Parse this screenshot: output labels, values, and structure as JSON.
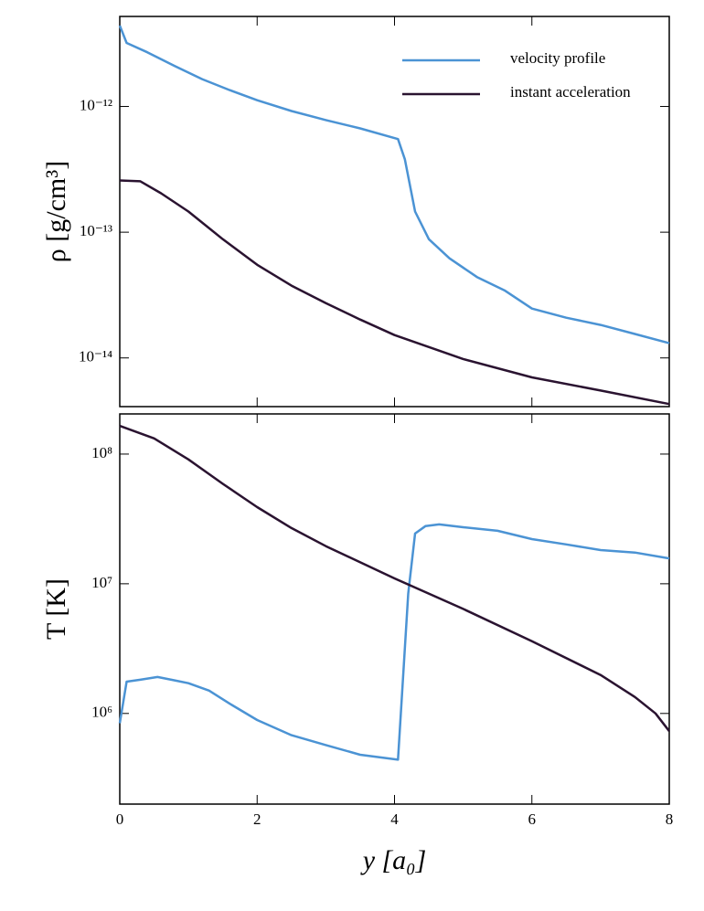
{
  "chart_data": [
    {
      "type": "line",
      "ylabel": "ρ [g/cm³]",
      "yscale": "log",
      "xlim": [
        0,
        8
      ],
      "ylim": [
        4.1e-15,
        5.2e-12
      ],
      "yticks": [
        {
          "value": 1e-14,
          "label": "10⁻¹⁴"
        },
        {
          "value": 1e-13,
          "label": "10⁻¹³"
        },
        {
          "value": 1e-12,
          "label": "10⁻¹²"
        }
      ],
      "legend": "upper right",
      "series": [
        {
          "name": "velocity profile",
          "color": "#4b93d4",
          "x": [
            0,
            0.1,
            0.4,
            0.8,
            1.2,
            1.6,
            2,
            2.5,
            3,
            3.5,
            4.05,
            4.15,
            4.3,
            4.5,
            4.8,
            5.2,
            5.6,
            6,
            6.5,
            7,
            7.5,
            8
          ],
          "values": [
            4.4e-12,
            3.2e-12,
            2.7e-12,
            2.1e-12,
            1.65e-12,
            1.35e-12,
            1.12e-12,
            9.2e-13,
            7.8e-13,
            6.7e-13,
            5.5e-13,
            3.8e-13,
            1.46e-13,
            8.8e-14,
            6.2e-14,
            4.4e-14,
            3.45e-14,
            2.47e-14,
            2.09e-14,
            1.83e-14,
            1.55e-14,
            1.31e-14
          ]
        },
        {
          "name": "instant acceleration",
          "color": "#2a1330",
          "x": [
            0,
            0.3,
            0.6,
            1,
            1.5,
            2,
            2.5,
            3,
            3.5,
            4,
            5,
            6,
            7,
            8
          ],
          "values": [
            2.58e-13,
            2.54e-13,
            2.04e-13,
            1.46e-13,
            8.8e-14,
            5.5e-14,
            3.76e-14,
            2.73e-14,
            2.02e-14,
            1.52e-14,
            9.8e-15,
            7e-15,
            5.5e-15,
            4.3e-15
          ]
        }
      ]
    },
    {
      "type": "line",
      "ylabel": "T [K]",
      "xlabel": "y [a₀]",
      "yscale": "log",
      "xlim": [
        0,
        8
      ],
      "ylim": [
        200000.0,
        204000000.0
      ],
      "xticks": [
        0,
        2,
        4,
        6,
        8
      ],
      "yticks": [
        {
          "value": 1000000.0,
          "label": "10⁶"
        },
        {
          "value": 10000000.0,
          "label": "10⁷"
        },
        {
          "value": 100000000.0,
          "label": "10⁸"
        }
      ],
      "series": [
        {
          "color": "#4b93d4",
          "x": [
            0,
            0.1,
            0.3,
            0.55,
            0.8,
            1,
            1.3,
            1.6,
            2,
            2.5,
            3,
            3.5,
            4.05,
            4.2,
            4.3,
            4.45,
            4.65,
            5,
            5.5,
            6,
            6.5,
            7,
            7.5,
            8
          ],
          "values": [
            840000.0,
            1760000.0,
            1820000.0,
            1910000.0,
            1800000.0,
            1710000.0,
            1500000.0,
            1190000.0,
            890000.0,
            680000.0,
            570000.0,
            480000.0,
            440000.0,
            8400000.0,
            24400000.0,
            27800000.0,
            28700000.0,
            27300000.0,
            25600000.0,
            22100000.0,
            20100000.0,
            18200000.0,
            17400000.0,
            15700000.0
          ]
        },
        {
          "color": "#2a1330",
          "x": [
            0,
            0.5,
            1,
            1.5,
            2,
            2.5,
            3,
            4,
            5,
            6,
            7,
            7.5,
            7.8,
            8
          ],
          "values": [
            165000000.0,
            132000000.0,
            91000000.0,
            59000000.0,
            39000000.0,
            26900000.0,
            19500000.0,
            11000000.0,
            6400000.0,
            3600000.0,
            1980000.0,
            1340000.0,
            1000000.0,
            730000.0
          ]
        }
      ]
    }
  ]
}
